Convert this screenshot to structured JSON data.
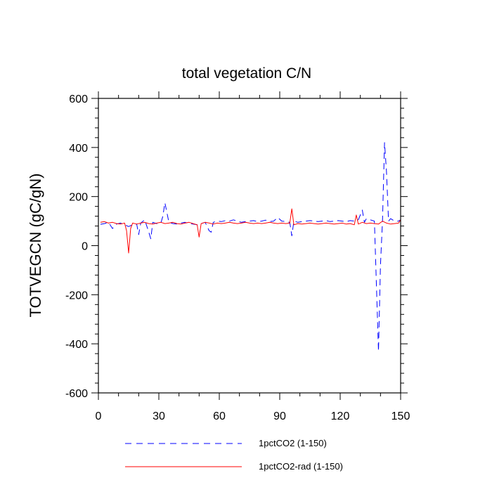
{
  "chart_data": {
    "type": "line",
    "title": "total vegetation C/N",
    "xlabel": "",
    "ylabel": "TOTVEGCN  (gC/gN)",
    "xlim": [
      0,
      150
    ],
    "ylim": [
      -600,
      600
    ],
    "x_ticks": [
      0,
      30,
      60,
      90,
      120,
      150
    ],
    "y_ticks": [
      -600,
      -400,
      -200,
      0,
      200,
      400,
      600
    ],
    "x_tick_labels": [
      "0",
      "30",
      "60",
      "90",
      "120",
      "150"
    ],
    "y_tick_labels": [
      "-600",
      "-400",
      "-200",
      "0",
      "200",
      "400",
      "600"
    ],
    "grid": false,
    "legend_position": "bottom",
    "series": [
      {
        "name": "1pctCO2 (1-150)",
        "color": "#0000ff",
        "dash": "dashed",
        "x": [
          1,
          3,
          5,
          7,
          9,
          11,
          13,
          15,
          17,
          19,
          20,
          21,
          23,
          25,
          26,
          27,
          29,
          31,
          32,
          33,
          35,
          37,
          39,
          41,
          43,
          45,
          47,
          49,
          51,
          53,
          55,
          56,
          57,
          59,
          61,
          63,
          65,
          67,
          69,
          71,
          73,
          75,
          77,
          79,
          81,
          83,
          85,
          87,
          89,
          91,
          93,
          95,
          96,
          97,
          99,
          101,
          103,
          105,
          107,
          109,
          111,
          113,
          115,
          117,
          119,
          121,
          123,
          125,
          127,
          129,
          131,
          132,
          133,
          135,
          137,
          139,
          140,
          141,
          142,
          143,
          144,
          145,
          147,
          149,
          150
        ],
        "values": [
          87,
          90,
          95,
          70,
          88,
          92,
          85,
          78,
          85,
          88,
          45,
          92,
          105,
          55,
          28,
          95,
          90,
          92,
          120,
          175,
          95,
          90,
          88,
          92,
          95,
          90,
          88,
          85,
          90,
          95,
          60,
          55,
          95,
          100,
          98,
          102,
          100,
          105,
          100,
          95,
          98,
          100,
          102,
          98,
          100,
          104,
          98,
          100,
          115,
          100,
          98,
          95,
          40,
          100,
          95,
          98,
          100,
          102,
          100,
          98,
          100,
          102,
          98,
          100,
          102,
          100,
          98,
          102,
          100,
          105,
          145,
          95,
          110,
          105,
          100,
          -430,
          -80,
          100,
          420,
          300,
          100,
          110,
          100,
          100,
          105
        ]
      },
      {
        "name": "1pctCO2-rad (1-150)",
        "color": "#ff0000",
        "dash": "solid",
        "x": [
          1,
          3,
          5,
          7,
          9,
          11,
          13,
          14,
          15,
          16,
          17,
          19,
          21,
          23,
          25,
          27,
          29,
          31,
          33,
          35,
          37,
          39,
          41,
          43,
          45,
          47,
          49,
          50,
          51,
          53,
          55,
          57,
          59,
          61,
          63,
          65,
          67,
          69,
          71,
          73,
          75,
          77,
          79,
          81,
          83,
          85,
          87,
          89,
          91,
          93,
          95,
          96,
          97,
          99,
          101,
          103,
          105,
          107,
          109,
          111,
          113,
          115,
          117,
          119,
          121,
          123,
          125,
          127,
          128,
          129,
          131,
          133,
          135,
          137,
          139,
          141,
          143,
          145,
          147,
          149,
          150
        ],
        "values": [
          95,
          98,
          92,
          95,
          90,
          88,
          92,
          60,
          -30,
          70,
          92,
          88,
          92,
          95,
          90,
          88,
          92,
          95,
          90,
          92,
          95,
          90,
          88,
          92,
          95,
          90,
          85,
          35,
          90,
          95,
          92,
          88,
          92,
          90,
          92,
          95,
          92,
          90,
          92,
          95,
          92,
          90,
          92,
          90,
          92,
          95,
          92,
          90,
          92,
          90,
          92,
          150,
          85,
          90,
          88,
          90,
          92,
          90,
          88,
          90,
          92,
          90,
          88,
          90,
          92,
          88,
          90,
          85,
          125,
          88,
          95,
          90,
          92,
          90,
          88,
          100,
          92,
          88,
          90,
          92,
          105
        ]
      }
    ]
  }
}
